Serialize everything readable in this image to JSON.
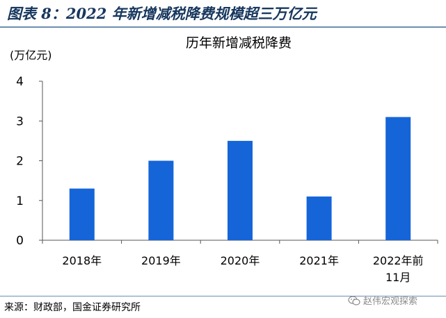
{
  "figure": {
    "title": "图表 8：2022 年新增减税降费规模超三万亿元",
    "source": "来源：财政部，国金证券研究所",
    "watermark": "赵伟宏观探索",
    "watermark_icon": "wechat-icon"
  },
  "colors": {
    "bar": "#1565d8",
    "axis": "#555555",
    "title": "#17375e"
  },
  "chart_data": {
    "type": "bar",
    "title": "历年新增减税降费",
    "ylabel": "(万亿元)",
    "xlabel": "",
    "categories": [
      "2018年",
      "2019年",
      "2020年",
      "2021年",
      "2022年前11月"
    ],
    "values": [
      1.3,
      2.0,
      2.5,
      1.1,
      3.1
    ],
    "ylim": [
      0,
      4
    ],
    "yticks": [
      "0",
      "1",
      "2",
      "3",
      "4"
    ],
    "grid": false,
    "legend": "none"
  }
}
